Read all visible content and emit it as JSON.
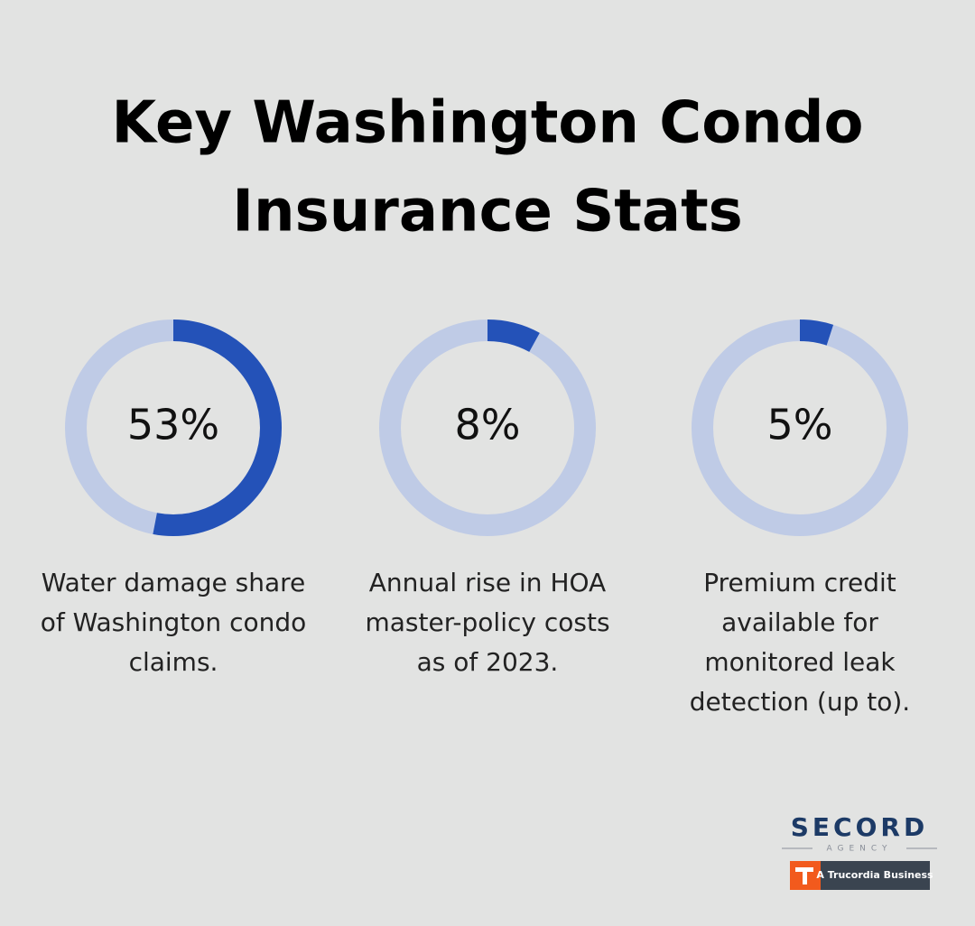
{
  "title_lines": [
    "Key Washington Condo",
    "Insurance Stats"
  ],
  "chart_data": [
    {
      "type": "donut",
      "values": [
        53
      ],
      "value_labels": [
        "53%"
      ],
      "color": "#2452b8",
      "track_color": "#bfcbe6",
      "caption_lines": [
        "Water damage share",
        "of Washington condo",
        "claims."
      ]
    },
    {
      "type": "donut",
      "values": [
        8
      ],
      "value_labels": [
        "8%"
      ],
      "color": "#2452b8",
      "track_color": "#bfcbe6",
      "caption_lines": [
        "Annual rise in HOA",
        "master-policy costs",
        "as of 2023."
      ]
    },
    {
      "type": "donut",
      "values": [
        5
      ],
      "value_labels": [
        "5%"
      ],
      "color": "#2452b8",
      "track_color": "#bfcbe6",
      "caption_lines": [
        "Premium credit",
        "available for",
        "monitored leak",
        "detection (up to)."
      ]
    }
  ],
  "logo": {
    "name": "SECORD",
    "sub": "AGENCY",
    "badge": "A Trucordia Business"
  }
}
